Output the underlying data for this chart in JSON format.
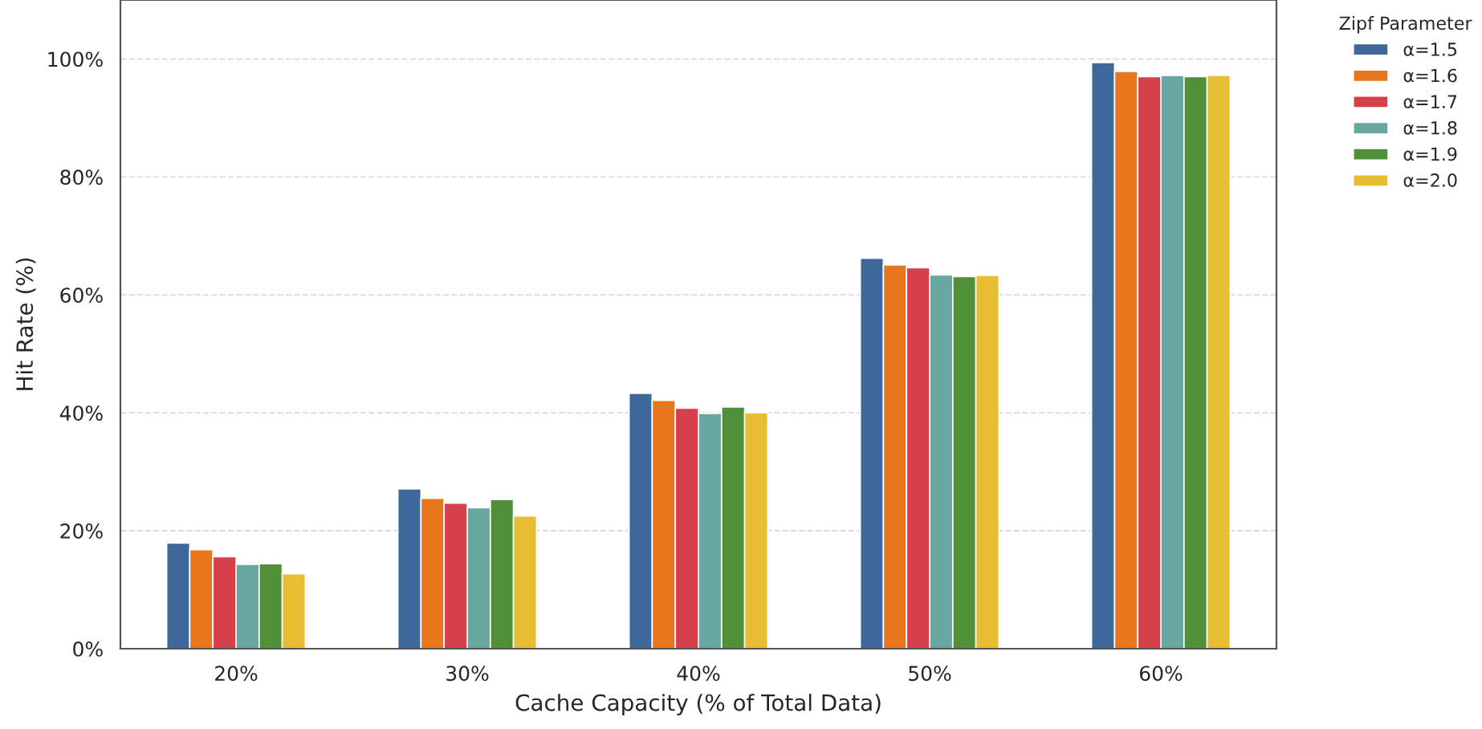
{
  "chart_data": {
    "type": "bar",
    "xlabel": "Cache Capacity (% of Total Data)",
    "ylabel": "Hit Rate (%)",
    "legend_title": "Zipf Parameter",
    "legend": "top right",
    "grid": "y",
    "categories": [
      "20%",
      "30%",
      "40%",
      "50%",
      "60%"
    ],
    "ylim": [
      0,
      110
    ],
    "yticks": [
      {
        "value": 0,
        "label": "0%"
      },
      {
        "value": 20,
        "label": "20%"
      },
      {
        "value": 40,
        "label": "40%"
      },
      {
        "value": 60,
        "label": "60%"
      },
      {
        "value": 80,
        "label": "80%"
      },
      {
        "value": 100,
        "label": "100%"
      }
    ],
    "series": [
      {
        "name": "α=1.5",
        "color": "#3d6899",
        "values": [
          17.9,
          27.1,
          43.3,
          66.2,
          99.4
        ]
      },
      {
        "name": "α=1.6",
        "color": "#e8761c",
        "values": [
          16.8,
          25.5,
          42.1,
          65.1,
          97.9
        ]
      },
      {
        "name": "α=1.7",
        "color": "#d6404a",
        "values": [
          15.6,
          24.7,
          40.8,
          64.6,
          97.0
        ]
      },
      {
        "name": "α=1.8",
        "color": "#68a8a0",
        "values": [
          14.3,
          23.9,
          39.9,
          63.4,
          97.2
        ]
      },
      {
        "name": "α=1.9",
        "color": "#4f9038",
        "values": [
          14.4,
          25.3,
          41.0,
          63.1,
          97.0
        ]
      },
      {
        "name": "α=2.0",
        "color": "#e6bd33",
        "values": [
          12.7,
          22.5,
          40.0,
          63.3,
          97.2
        ]
      }
    ]
  }
}
